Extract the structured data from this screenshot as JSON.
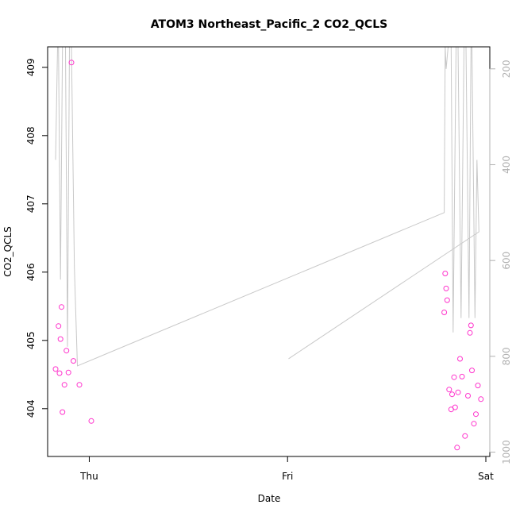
{
  "chart_data": {
    "type": "scatter",
    "title": "ATOM3 Northeast_Pacific_2 CO2_QCLS",
    "xlabel": "Date",
    "ylabel": "CO2_QCLS",
    "x_ticks": [
      "Thu",
      "Fri",
      "Sat"
    ],
    "x_tick_days": [
      0,
      1,
      2
    ],
    "xlim_days": [
      -0.21,
      2.02
    ],
    "ylim": [
      403.3,
      409.3
    ],
    "y_ticks": [
      404,
      405,
      406,
      407,
      408,
      409
    ],
    "y2_ticks": [
      200,
      400,
      600,
      800,
      1000
    ],
    "y2lim": [
      1009,
      154
    ],
    "grid": false,
    "colors": {
      "points": "#ff33cc",
      "line": "#c8c8c8",
      "frame": "#000000",
      "right_axis": "#b0b0b0"
    },
    "series": [
      {
        "type": "scatter",
        "points": [
          [
            -0.17,
            404.58
          ],
          [
            -0.155,
            405.21
          ],
          [
            -0.15,
            404.52
          ],
          [
            -0.145,
            405.02
          ],
          [
            -0.14,
            405.49
          ],
          [
            -0.135,
            403.95
          ],
          [
            -0.125,
            404.35
          ],
          [
            -0.115,
            404.85
          ],
          [
            -0.105,
            404.53
          ],
          [
            -0.09,
            409.07
          ],
          [
            -0.08,
            404.7
          ],
          [
            -0.05,
            404.35
          ],
          [
            0.01,
            403.82
          ],
          [
            1.79,
            405.41
          ],
          [
            1.795,
            405.98
          ],
          [
            1.8,
            405.76
          ],
          [
            1.805,
            405.59
          ],
          [
            1.815,
            404.28
          ],
          [
            1.825,
            403.99
          ],
          [
            1.83,
            404.21
          ],
          [
            1.84,
            404.46
          ],
          [
            1.845,
            404.02
          ],
          [
            1.855,
            403.43
          ],
          [
            1.86,
            404.24
          ],
          [
            1.87,
            404.73
          ],
          [
            1.88,
            404.47
          ],
          [
            1.895,
            403.6
          ],
          [
            1.91,
            404.19
          ],
          [
            1.92,
            405.11
          ],
          [
            1.925,
            405.22
          ],
          [
            1.93,
            404.56
          ],
          [
            1.94,
            403.78
          ],
          [
            1.95,
            403.92
          ],
          [
            1.96,
            404.34
          ],
          [
            1.975,
            404.14
          ]
        ]
      },
      {
        "type": "line",
        "axis": "right",
        "points": [
          [
            -0.17,
            390
          ],
          [
            -0.16,
            154
          ],
          [
            -0.155,
            154
          ],
          [
            -0.145,
            640
          ],
          [
            -0.135,
            154
          ],
          [
            -0.12,
            154
          ],
          [
            -0.11,
            780
          ],
          [
            -0.1,
            154
          ],
          [
            -0.09,
            154
          ],
          [
            -0.075,
            615
          ],
          [
            -0.06,
            820
          ],
          [
            1.79,
            500
          ],
          [
            1.795,
            154
          ],
          [
            1.8,
            200
          ],
          [
            1.81,
            154
          ],
          [
            1.825,
            154
          ],
          [
            1.835,
            750
          ],
          [
            1.85,
            154
          ],
          [
            1.86,
            154
          ],
          [
            1.875,
            720
          ],
          [
            1.89,
            154
          ],
          [
            1.9,
            154
          ],
          [
            1.915,
            720
          ],
          [
            1.925,
            154
          ],
          [
            1.93,
            154
          ],
          [
            1.945,
            720
          ],
          [
            1.955,
            390
          ],
          [
            1.965,
            540
          ],
          [
            1.005,
            805
          ]
        ]
      }
    ]
  }
}
